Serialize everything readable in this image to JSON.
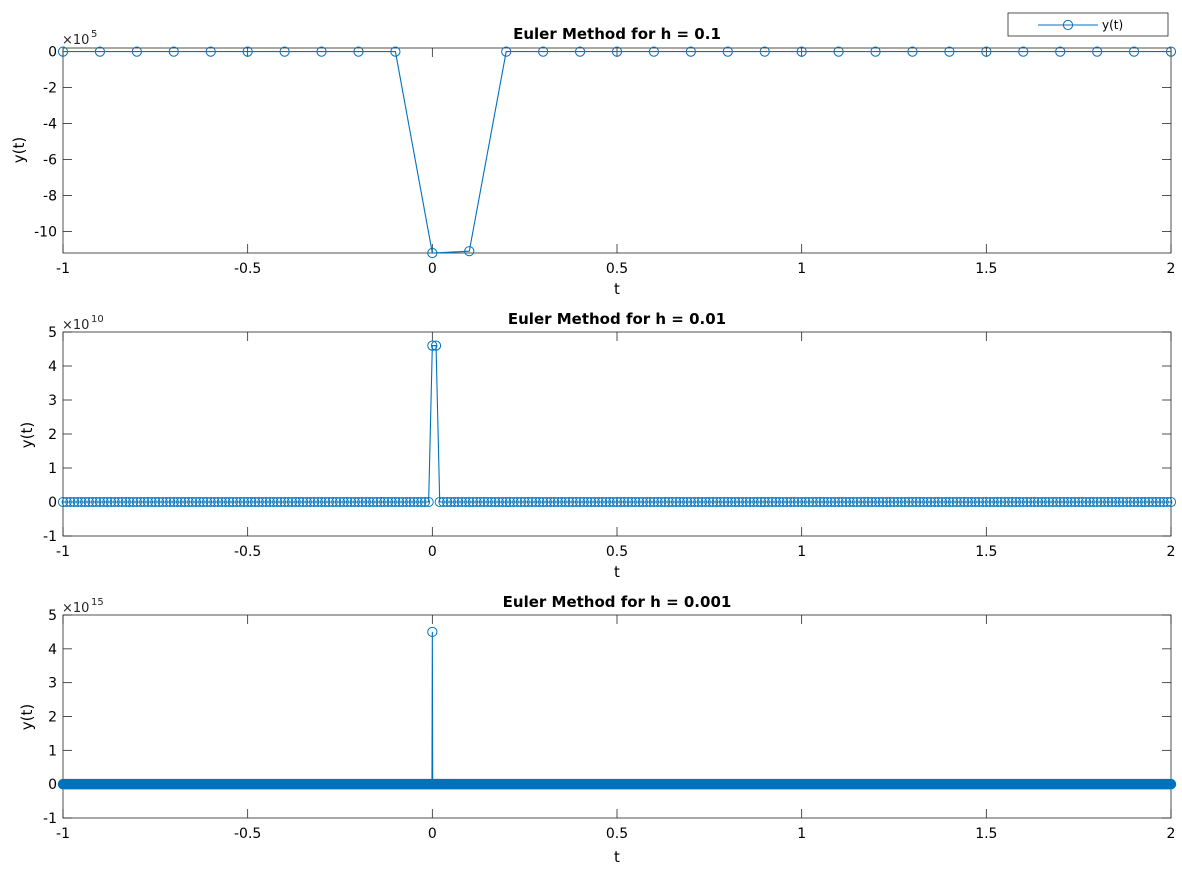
{
  "chart_data": [
    {
      "type": "line",
      "title": "Euler Method for h = 0.1",
      "xlabel": "t",
      "ylabel": "y(t)",
      "xlim": [
        -1,
        2
      ],
      "ylim": [
        -11.2,
        0.2
      ],
      "y_scale_base": "×10",
      "y_scale_exponent": "5",
      "xticks": [
        "-1",
        "-0.5",
        "0",
        "0.5",
        "1",
        "1.5",
        "2"
      ],
      "yticks": [
        "-10",
        "-8",
        "-6",
        "-4",
        "-2",
        "0"
      ],
      "marker": "circle",
      "legend": {
        "entries": [
          "y(t)"
        ],
        "position": "top-right"
      },
      "series": [
        {
          "name": "y(t)",
          "color": "#0072BD",
          "x": [
            -1.0,
            -0.9,
            -0.8,
            -0.7,
            -0.6,
            -0.5,
            -0.4,
            -0.3,
            -0.2,
            -0.1,
            0.0,
            0.1,
            0.2,
            0.3,
            0.4,
            0.5,
            0.6,
            0.7,
            0.8,
            0.9,
            1.0,
            1.1,
            1.2,
            1.3,
            1.4,
            1.5,
            1.6,
            1.7,
            1.8,
            1.9,
            2.0
          ],
          "y": [
            0,
            0,
            0,
            0,
            0,
            0,
            0,
            0,
            0,
            0,
            -11.2,
            -11.1,
            0,
            0,
            0,
            0,
            0,
            0,
            0,
            0,
            0,
            0,
            0,
            0,
            0,
            0,
            0,
            0,
            0,
            0,
            0
          ]
        }
      ]
    },
    {
      "type": "line",
      "title": "Euler Method for h = 0.01",
      "xlabel": "t",
      "ylabel": "y(t)",
      "xlim": [
        -1,
        2
      ],
      "ylim": [
        -1,
        5
      ],
      "y_scale_base": "×10",
      "y_scale_exponent": "10",
      "xticks": [
        "-1",
        "-0.5",
        "0",
        "0.5",
        "1",
        "1.5",
        "2"
      ],
      "yticks": [
        "-1",
        "0",
        "1",
        "2",
        "3",
        "4",
        "5"
      ],
      "marker": "circle",
      "series": [
        {
          "color": "#0072BD",
          "x_start": -1,
          "x_step": 0.01,
          "x_end": 2,
          "baseline": 0,
          "spikes": [
            {
              "x": 0.0,
              "y": 4.6
            },
            {
              "x": 0.01,
              "y": 4.6
            }
          ]
        }
      ]
    },
    {
      "type": "line",
      "title": "Euler Method for h = 0.001",
      "xlabel": "t",
      "ylabel": "y(t)",
      "xlim": [
        -1,
        2
      ],
      "ylim": [
        -1,
        5
      ],
      "y_scale_base": "×10",
      "y_scale_exponent": "15",
      "xticks": [
        "-1",
        "-0.5",
        "0",
        "0.5",
        "1",
        "1.5",
        "2"
      ],
      "yticks": [
        "-1",
        "0",
        "1",
        "2",
        "3",
        "4",
        "5"
      ],
      "marker": "circle",
      "series": [
        {
          "color": "#0072BD",
          "x_start": -1,
          "x_step": 0.001,
          "x_end": 2,
          "baseline": 0,
          "spikes": [
            {
              "x": 0.0,
              "y": 4.5
            }
          ]
        }
      ]
    }
  ]
}
